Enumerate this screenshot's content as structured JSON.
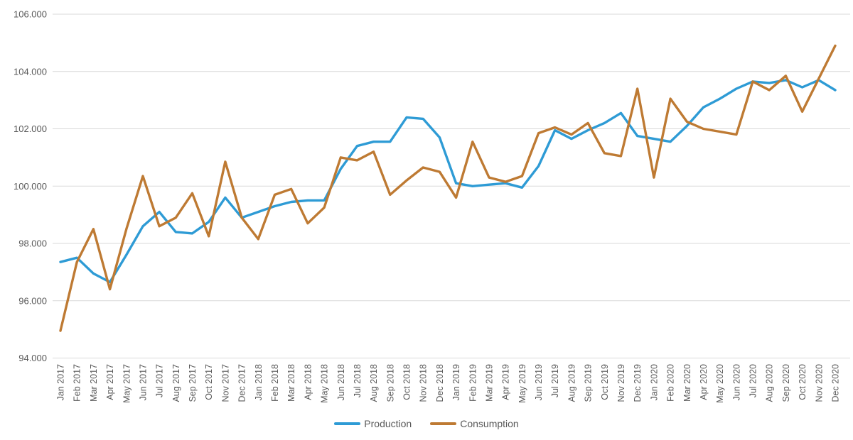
{
  "chart_data": {
    "type": "line",
    "title": "",
    "xlabel": "",
    "ylabel": "",
    "grid": true,
    "legend_position": "bottom",
    "ylim": [
      94000,
      106000
    ],
    "ytick_step": 2000,
    "ytick_labels": [
      "94.000",
      "96.000",
      "98.000",
      "100.000",
      "102.000",
      "104.000",
      "106.000"
    ],
    "axis_text_color": "#595959",
    "gridline_color": "#D9D9D9",
    "x": [
      "Jan 2017",
      "Feb 2017",
      "Mar 2017",
      "Apr 2017",
      "May 2017",
      "Jun 2017",
      "Jul 2017",
      "Aug 2017",
      "Sep 2017",
      "Oct 2017",
      "Nov 2017",
      "Dec 2017",
      "Jan 2018",
      "Feb 2018",
      "Mar 2018",
      "Apr 2018",
      "May 2018",
      "Jun 2018",
      "Jul 2018",
      "Aug 2018",
      "Sep 2018",
      "Oct 2018",
      "Nov 2018",
      "Dec 2018",
      "Jan 2019",
      "Feb 2019",
      "Mar 2019",
      "Apr 2019",
      "May 2019",
      "Jun 2019",
      "Jul 2019",
      "Aug 2019",
      "Sep 2019",
      "Oct 2019",
      "Nov 2019",
      "Dec 2019",
      "Jan 2020",
      "Feb 2020",
      "Mar 2020",
      "Apr 2020",
      "May 2020",
      "Jun 2020",
      "Jul 2020",
      "Aug 2020",
      "Sep 2020",
      "Oct 2020",
      "Nov 2020",
      "Dec 2020"
    ],
    "series": [
      {
        "name": "Production",
        "color": "#2E9BD5",
        "values": [
          97350,
          97500,
          96950,
          96650,
          97600,
          98600,
          99100,
          98400,
          98350,
          98750,
          99600,
          98900,
          99100,
          99300,
          99450,
          99500,
          99500,
          100600,
          101400,
          101550,
          101550,
          102400,
          102350,
          101700,
          100100,
          100000,
          100050,
          100100,
          99950,
          100700,
          101950,
          101650,
          101950,
          102200,
          102550,
          101750,
          101650,
          101550,
          102100,
          102750,
          103050,
          103400,
          103650,
          103600,
          103700,
          103450,
          103700,
          103350
        ]
      },
      {
        "name": "Consumption",
        "color": "#BE7A33",
        "values": [
          94950,
          97350,
          98500,
          96400,
          98500,
          100350,
          98600,
          98900,
          99750,
          98250,
          100850,
          98900,
          98150,
          99700,
          99900,
          98700,
          99250,
          101000,
          100900,
          101200,
          99700,
          100200,
          100650,
          100500,
          99600,
          101550,
          100300,
          100150,
          100350,
          101850,
          102050,
          101800,
          102200,
          101150,
          101050,
          103400,
          100300,
          103050,
          102250,
          102000,
          101900,
          101800,
          103650,
          103350,
          103850,
          102600,
          103750,
          104900
        ]
      }
    ]
  },
  "legend": {
    "production_label": "Production",
    "consumption_label": "Consumption"
  }
}
